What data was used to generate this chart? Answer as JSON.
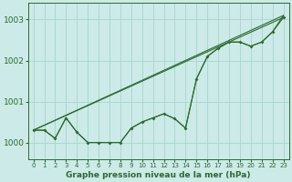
{
  "title": "Graphe pression niveau de la mer (hPa)",
  "xlim": [
    -0.5,
    23.5
  ],
  "ylim": [
    999.6,
    1003.4
  ],
  "yticks": [
    1000,
    1001,
    1002,
    1003
  ],
  "xticks": [
    0,
    1,
    2,
    3,
    4,
    5,
    6,
    7,
    8,
    9,
    10,
    11,
    12,
    13,
    14,
    15,
    16,
    17,
    18,
    19,
    20,
    21,
    22,
    23
  ],
  "bg_color": "#cceae7",
  "grid_color": "#a8d5d0",
  "line_color": "#2d6a2d",
  "line_straight1": {
    "x": [
      0,
      23
    ],
    "y": [
      1000.3,
      1003.05
    ]
  },
  "line_straight2": {
    "x": [
      0,
      23
    ],
    "y": [
      1000.3,
      1003.1
    ]
  },
  "line_zigzag": {
    "x": [
      0,
      1,
      2,
      3,
      4,
      5,
      6,
      7,
      8,
      9,
      10,
      11,
      12,
      13,
      14,
      15,
      16,
      17,
      18,
      19,
      20,
      21,
      22,
      23
    ],
    "y": [
      1000.3,
      1000.3,
      1000.1,
      1000.6,
      1000.25,
      1000.0,
      1000.0,
      1000.0,
      1000.0,
      1000.35,
      1000.5,
      1000.6,
      1000.7,
      1000.58,
      1000.35,
      1001.55,
      1002.1,
      1002.3,
      1002.45,
      1002.45,
      1002.35,
      1002.45,
      1002.7,
      1003.05
    ]
  },
  "line_extra": {
    "x": [
      0,
      1,
      2,
      3,
      4,
      5,
      6,
      7,
      8,
      9,
      10,
      11,
      12,
      13,
      14,
      15,
      16,
      17,
      18,
      19,
      20,
      21,
      22,
      23
    ],
    "y": [
      1000.3,
      1000.3,
      1000.1,
      1000.6,
      1000.25,
      1000.0,
      1000.0,
      1000.0,
      1000.0,
      1000.35,
      1000.5,
      1000.6,
      1000.7,
      1000.58,
      1000.35,
      1001.55,
      1002.1,
      1002.3,
      1002.45,
      1002.45,
      1002.35,
      1002.45,
      1002.7,
      1003.1
    ]
  },
  "markers": {
    "x": [
      0,
      1,
      2,
      3,
      4,
      5,
      6,
      7,
      8,
      9,
      10,
      11,
      12,
      13,
      14,
      15,
      16,
      17,
      18,
      19,
      20,
      21,
      22,
      23
    ],
    "y": [
      1000.3,
      1000.3,
      1000.1,
      1000.6,
      1000.25,
      1000.0,
      1000.0,
      1000.0,
      1000.0,
      1000.35,
      1000.5,
      1000.6,
      1000.7,
      1000.58,
      1000.35,
      1001.55,
      1002.1,
      1002.3,
      1002.45,
      1002.45,
      1002.35,
      1002.45,
      1002.7,
      1003.05
    ]
  }
}
